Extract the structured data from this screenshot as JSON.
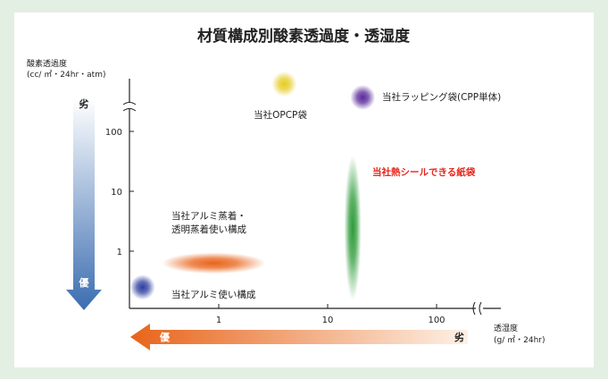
{
  "colors": {
    "page_background": "#e3efe2",
    "panel_background": "#ffffff",
    "highlight_text": "#e8251c",
    "arrow_vertical": "#3b6db0",
    "arrow_horizontal": "#e8641a"
  },
  "chart_data": {
    "type": "scatter",
    "title": "材質構成別酸素透過度・透湿度",
    "ylabel_line1": "酸素透過度",
    "ylabel_line2": "(cc/ ㎡・24hr・atm)",
    "xlabel_line1": "透湿度",
    "xlabel_line2": "(g/ ㎡・24hr)",
    "x_scale": "log",
    "y_scale": "log",
    "x_ticks": [
      {
        "value": 1,
        "label": "1"
      },
      {
        "value": 10,
        "label": "10"
      },
      {
        "value": 100,
        "label": "100"
      }
    ],
    "y_ticks": [
      {
        "value": 1,
        "label": "1"
      },
      {
        "value": 10,
        "label": "10"
      },
      {
        "value": 100,
        "label": "100"
      }
    ],
    "axis_break": true,
    "y_arrow": {
      "top_label": "劣",
      "bottom_label": "優"
    },
    "x_arrow": {
      "left_label": "優",
      "right_label": "劣"
    },
    "points": [
      {
        "label": "当社アルミ使い構成",
        "x": 0.2,
        "y": 0.25,
        "color": "#2d3fa0",
        "highlight": false
      },
      {
        "label": "当社アルミ蒸着・透明蒸着使い構成",
        "label_lines": [
          "当社アルミ蒸着・",
          "透明蒸着使い構成"
        ],
        "x": 0.9,
        "y": 0.6,
        "x_range": [
          0.3,
          2.7
        ],
        "y_range": [
          0.42,
          0.95
        ],
        "color": "#e8641a",
        "highlight": false
      },
      {
        "label": "当社熱シールできる紙袋",
        "x": 17,
        "y": 2.5,
        "x_range": [
          14,
          20
        ],
        "y_range": [
          0.15,
          40
        ],
        "color": "#2e9b3a",
        "highlight": true
      },
      {
        "label": "当社OPCP袋",
        "x": 4,
        "y": null,
        "color": "#e6cc24",
        "highlight": false
      },
      {
        "label": "当社ラッピング袋(CPP単体)",
        "x": 21,
        "y": null,
        "color": "#5a2a9a",
        "highlight": false
      }
    ]
  }
}
